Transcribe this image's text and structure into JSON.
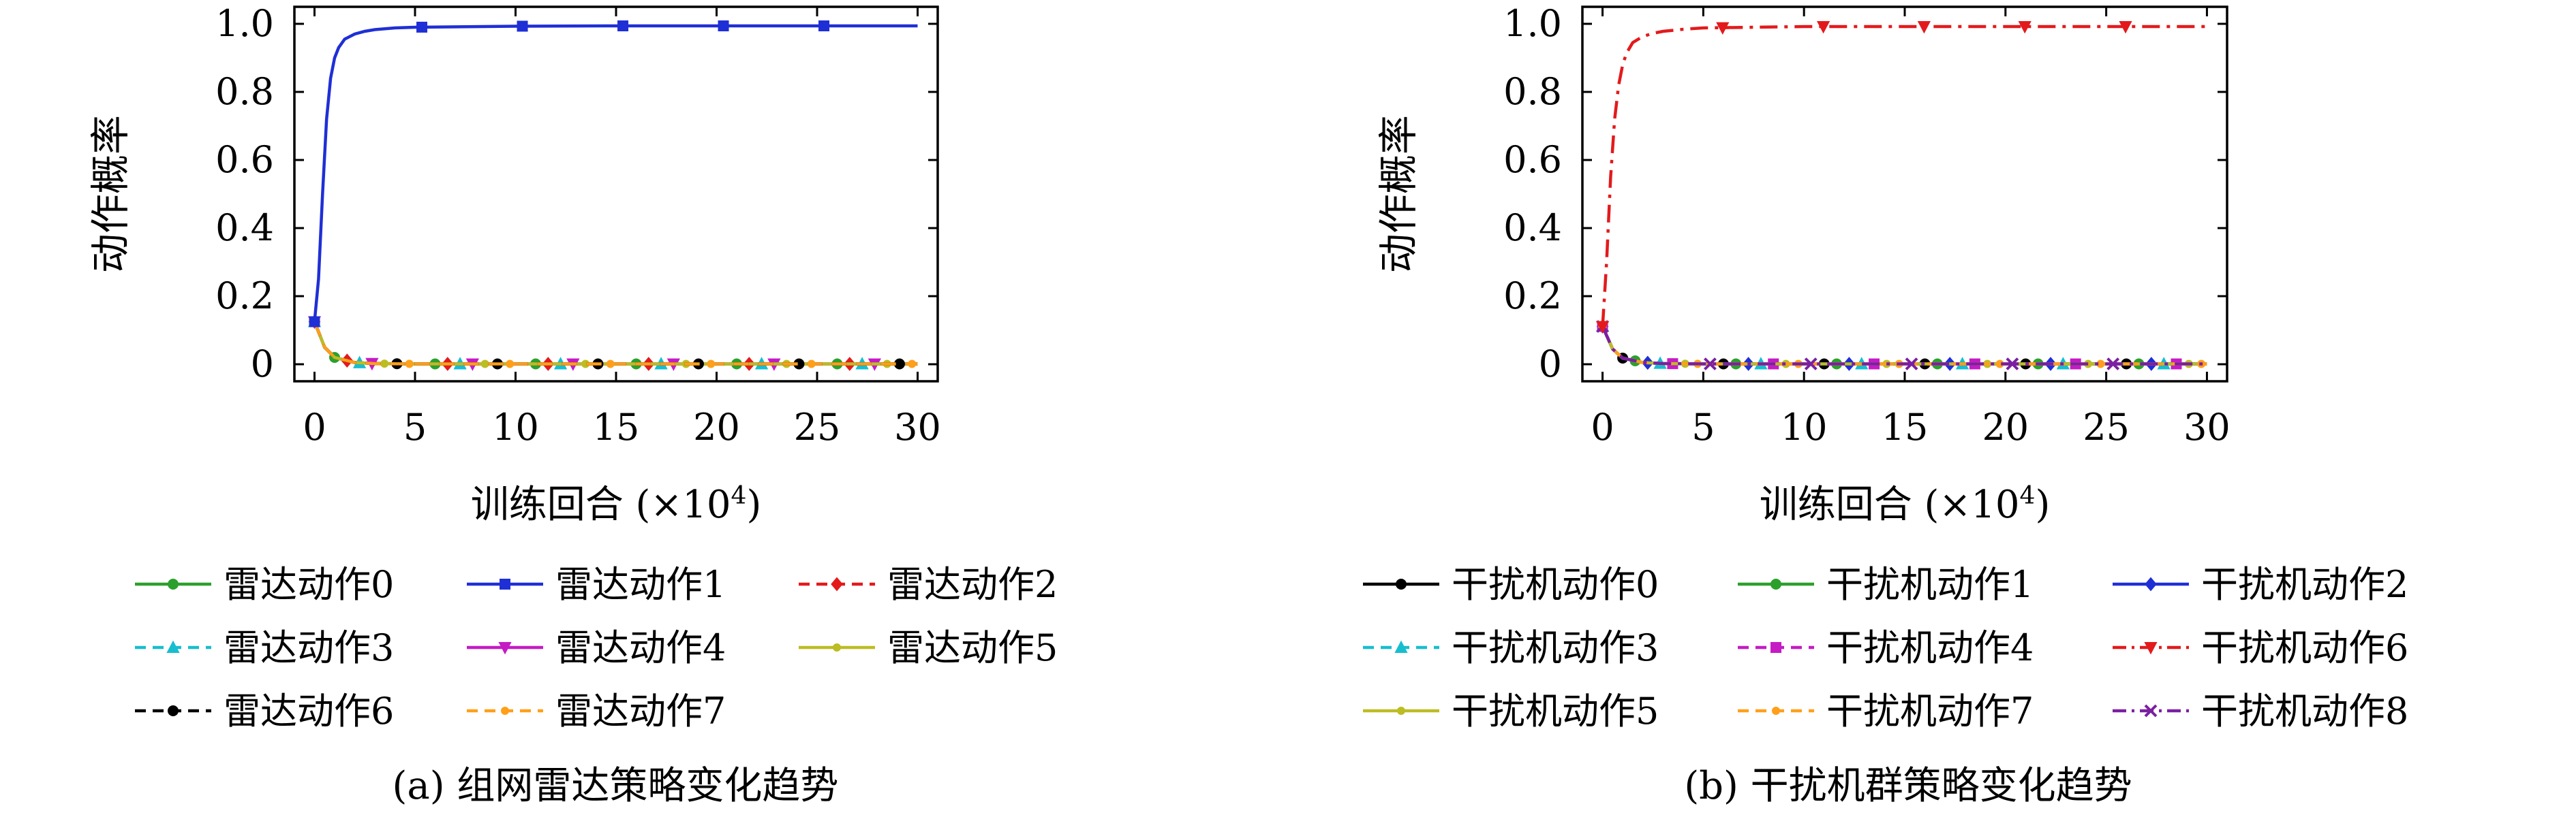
{
  "chart_data": [
    {
      "type": "line",
      "caption": "(a) 组网雷达策略变化趋势",
      "xlabel": "训练回合 (×10⁴)",
      "xlabel_main": "训练回合 (×10",
      "xlabel_exp": "4",
      "xlabel_close": ")",
      "ylabel": "动作概率",
      "xlim": [
        -1,
        31
      ],
      "ylim": [
        -0.05,
        1.05
      ],
      "xticks": [
        0,
        5,
        10,
        15,
        20,
        25,
        30
      ],
      "yticks": [
        0,
        0.2,
        0.4,
        0.6,
        0.8,
        1.0
      ],
      "ytick_labels": [
        "0",
        "0.2",
        "0.4",
        "0.6",
        "0.8",
        "1.0"
      ],
      "grid": false,
      "legend_position": "below",
      "series": [
        {
          "name": "雷达动作0",
          "color": "#2ca02c",
          "dash": "solid",
          "marker": "circle",
          "x": [
            0,
            0.5,
            1,
            2,
            3,
            5,
            10,
            15,
            20,
            25,
            30
          ],
          "y": [
            0.125,
            0.05,
            0.02,
            0.005,
            0.002,
            0.001,
            0.001,
            0.001,
            0.001,
            0.001,
            0.001
          ]
        },
        {
          "name": "雷达动作1",
          "color": "#1f2fd6",
          "dash": "solid",
          "marker": "square",
          "x": [
            0,
            0.2,
            0.4,
            0.6,
            0.8,
            1,
            1.2,
            1.5,
            2,
            2.5,
            3,
            4,
            5,
            10,
            15,
            20,
            25,
            30
          ],
          "y": [
            0.125,
            0.25,
            0.5,
            0.72,
            0.84,
            0.9,
            0.93,
            0.955,
            0.97,
            0.978,
            0.983,
            0.988,
            0.99,
            0.993,
            0.994,
            0.994,
            0.994,
            0.994
          ]
        },
        {
          "name": "雷达动作2",
          "color": "#e31a1c",
          "dash": "dashed",
          "marker": "diamond",
          "x": [
            0,
            0.5,
            1,
            2,
            3,
            5,
            10,
            15,
            20,
            25,
            30
          ],
          "y": [
            0.125,
            0.05,
            0.02,
            0.005,
            0.002,
            0.001,
            0.001,
            0.001,
            0.001,
            0.001,
            0.001
          ]
        },
        {
          "name": "雷达动作3",
          "color": "#17becf",
          "dash": "dashed",
          "marker": "triangle-up",
          "x": [
            0,
            0.5,
            1,
            2,
            3,
            5,
            10,
            15,
            20,
            25,
            30
          ],
          "y": [
            0.125,
            0.05,
            0.02,
            0.005,
            0.002,
            0.001,
            0.001,
            0.001,
            0.001,
            0.001,
            0.001
          ]
        },
        {
          "name": "雷达动作4",
          "color": "#c51bc5",
          "dash": "solid",
          "marker": "triangle-down",
          "x": [
            0,
            0.5,
            1,
            2,
            3,
            5,
            10,
            15,
            20,
            25,
            30
          ],
          "y": [
            0.125,
            0.05,
            0.02,
            0.005,
            0.002,
            0.001,
            0.001,
            0.001,
            0.001,
            0.001,
            0.001
          ]
        },
        {
          "name": "雷达动作5",
          "color": "#bcbd22",
          "dash": "solid",
          "marker": "dot",
          "x": [
            0,
            0.5,
            1,
            2,
            3,
            5,
            10,
            15,
            20,
            25,
            30
          ],
          "y": [
            0.125,
            0.05,
            0.02,
            0.005,
            0.002,
            0.001,
            0.001,
            0.001,
            0.001,
            0.001,
            0.001
          ]
        },
        {
          "name": "雷达动作6",
          "color": "#000000",
          "dash": "dashed",
          "marker": "circle",
          "x": [
            0,
            0.5,
            1,
            2,
            3,
            5,
            10,
            15,
            20,
            25,
            30
          ],
          "y": [
            0.125,
            0.05,
            0.02,
            0.005,
            0.002,
            0.001,
            0.001,
            0.001,
            0.001,
            0.001,
            0.001
          ]
        },
        {
          "name": "雷达动作7",
          "color": "#ff9f1a",
          "dash": "dashed",
          "marker": "dot",
          "x": [
            0,
            0.5,
            1,
            2,
            3,
            5,
            10,
            15,
            20,
            25,
            30
          ],
          "y": [
            0.125,
            0.05,
            0.02,
            0.005,
            0.002,
            0.001,
            0.001,
            0.001,
            0.001,
            0.001,
            0.001
          ]
        }
      ]
    },
    {
      "type": "line",
      "caption": "(b) 干扰机群策略变化趋势",
      "xlabel": "训练回合 (×10⁴)",
      "xlabel_main": "训练回合 (×10",
      "xlabel_exp": "4",
      "xlabel_close": ")",
      "ylabel": "动作概率",
      "xlim": [
        -1,
        31
      ],
      "ylim": [
        -0.05,
        1.05
      ],
      "xticks": [
        0,
        5,
        10,
        15,
        20,
        25,
        30
      ],
      "yticks": [
        0,
        0.2,
        0.4,
        0.6,
        0.8,
        1.0
      ],
      "ytick_labels": [
        "0",
        "0.2",
        "0.4",
        "0.6",
        "0.8",
        "1.0"
      ],
      "grid": false,
      "legend_position": "below",
      "series": [
        {
          "name": "干扰机动作0",
          "color": "#000000",
          "dash": "solid",
          "marker": "circle",
          "x": [
            0,
            0.5,
            1,
            2,
            3,
            5,
            10,
            15,
            20,
            25,
            30
          ],
          "y": [
            0.111,
            0.045,
            0.018,
            0.005,
            0.002,
            0.001,
            0.001,
            0.001,
            0.001,
            0.001,
            0.001
          ]
        },
        {
          "name": "干扰机动作1",
          "color": "#2ca02c",
          "dash": "solid",
          "marker": "circle",
          "x": [
            0,
            0.5,
            1,
            2,
            3,
            5,
            10,
            15,
            20,
            25,
            30
          ],
          "y": [
            0.111,
            0.045,
            0.018,
            0.005,
            0.002,
            0.001,
            0.001,
            0.001,
            0.001,
            0.001,
            0.001
          ]
        },
        {
          "name": "干扰机动作2",
          "color": "#1f2fd6",
          "dash": "solid",
          "marker": "diamond",
          "x": [
            0,
            0.5,
            1,
            2,
            3,
            5,
            10,
            15,
            20,
            25,
            30
          ],
          "y": [
            0.111,
            0.045,
            0.018,
            0.005,
            0.002,
            0.001,
            0.001,
            0.001,
            0.001,
            0.001,
            0.001
          ]
        },
        {
          "name": "干扰机动作3",
          "color": "#17becf",
          "dash": "dashed",
          "marker": "triangle-up",
          "x": [
            0,
            0.5,
            1,
            2,
            3,
            5,
            10,
            15,
            20,
            25,
            30
          ],
          "y": [
            0.111,
            0.045,
            0.018,
            0.005,
            0.002,
            0.001,
            0.001,
            0.001,
            0.001,
            0.001,
            0.001
          ]
        },
        {
          "name": "干扰机动作4",
          "color": "#c51bc5",
          "dash": "dashed",
          "marker": "square",
          "x": [
            0,
            0.5,
            1,
            2,
            3,
            5,
            10,
            15,
            20,
            25,
            30
          ],
          "y": [
            0.111,
            0.045,
            0.018,
            0.005,
            0.002,
            0.001,
            0.001,
            0.001,
            0.001,
            0.001,
            0.001
          ]
        },
        {
          "name": "干扰机动作6",
          "color": "#e31a1c",
          "dash": "dashdot",
          "marker": "triangle-down",
          "x": [
            0,
            0.2,
            0.4,
            0.6,
            0.8,
            1,
            1.2,
            1.5,
            2,
            2.5,
            3,
            4,
            5,
            10,
            15,
            20,
            25,
            30
          ],
          "y": [
            0.111,
            0.3,
            0.55,
            0.72,
            0.82,
            0.88,
            0.915,
            0.945,
            0.963,
            0.972,
            0.978,
            0.984,
            0.988,
            0.992,
            0.992,
            0.992,
            0.992,
            0.992
          ]
        },
        {
          "name": "干扰机动作5",
          "color": "#bcbd22",
          "dash": "solid",
          "marker": "dot",
          "x": [
            0,
            0.5,
            1,
            2,
            3,
            5,
            10,
            15,
            20,
            25,
            30
          ],
          "y": [
            0.111,
            0.045,
            0.018,
            0.005,
            0.002,
            0.001,
            0.001,
            0.001,
            0.001,
            0.001,
            0.001
          ]
        },
        {
          "name": "干扰机动作7",
          "color": "#ff9f1a",
          "dash": "dashed",
          "marker": "dot",
          "x": [
            0,
            0.5,
            1,
            2,
            3,
            5,
            10,
            15,
            20,
            25,
            30
          ],
          "y": [
            0.111,
            0.045,
            0.018,
            0.005,
            0.002,
            0.001,
            0.001,
            0.001,
            0.001,
            0.001,
            0.001
          ]
        },
        {
          "name": "干扰机动作8",
          "color": "#7b1fa2",
          "dash": "dashdot",
          "marker": "x",
          "x": [
            0,
            0.5,
            1,
            2,
            3,
            5,
            10,
            15,
            20,
            25,
            30
          ],
          "y": [
            0.111,
            0.045,
            0.018,
            0.005,
            0.002,
            0.001,
            0.001,
            0.001,
            0.001,
            0.001,
            0.001
          ]
        }
      ]
    }
  ]
}
